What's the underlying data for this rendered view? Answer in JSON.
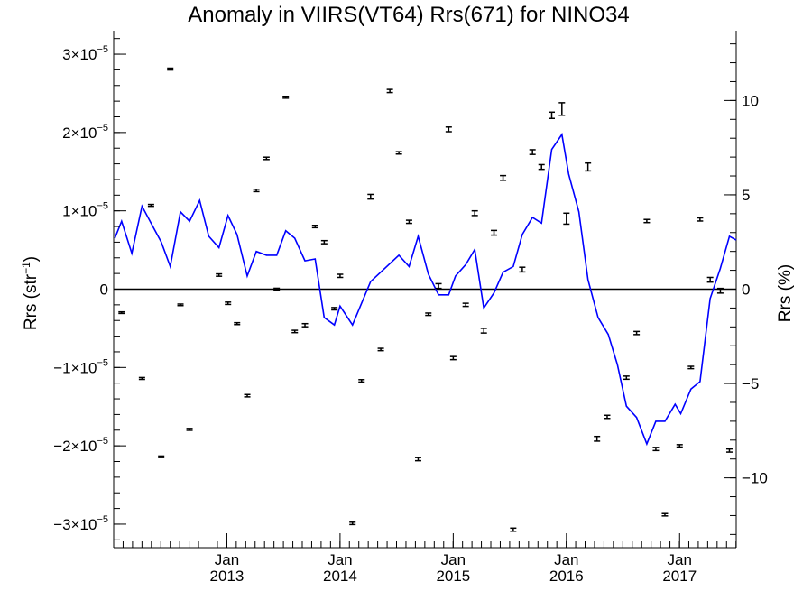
{
  "chart_data": {
    "type": "line",
    "title": "Anomaly in VIIRS(VT64) Rrs(671) for NINO34",
    "ylabel": "Rrs (str",
    "ylabel_sup": "−1",
    "ylabel_close": ")",
    "y2label": "Rrs (%)",
    "xlim": [
      2012.0,
      2017.5
    ],
    "ylim": [
      -3.3e-05,
      3.3e-05
    ],
    "y2lim": [
      -13.7,
      13.7
    ],
    "y_ticks": [
      {
        "value": 3e-05,
        "mant": "3",
        "exp": "−5"
      },
      {
        "value": 2e-05,
        "mant": "2",
        "exp": "−5"
      },
      {
        "value": 1e-05,
        "mant": "1",
        "exp": "−5"
      },
      {
        "value": 0,
        "mant": "0",
        "exp": ""
      },
      {
        "value": -1e-05,
        "mant": "−1",
        "exp": "−5"
      },
      {
        "value": -2e-05,
        "mant": "−2",
        "exp": "−5"
      },
      {
        "value": -3e-05,
        "mant": "−3",
        "exp": "−5"
      }
    ],
    "y2_ticks": [
      {
        "value": 10,
        "label": "10"
      },
      {
        "value": 5,
        "label": "5"
      },
      {
        "value": 0,
        "label": "0"
      },
      {
        "value": -5,
        "label": "−5"
      },
      {
        "value": -10,
        "label": "−10"
      }
    ],
    "x_ticks": [
      {
        "value": 2013,
        "month": "Jan",
        "year": "2013"
      },
      {
        "value": 2014,
        "month": "Jan",
        "year": "2014"
      },
      {
        "value": 2015,
        "month": "Jan",
        "year": "2015"
      },
      {
        "value": 2016,
        "month": "Jan",
        "year": "2016"
      },
      {
        "value": 2017,
        "month": "Jan",
        "year": "2017"
      }
    ],
    "x_minor_step": 0.0833,
    "grid": false,
    "series": [
      {
        "name": "",
        "color": "#0000ff",
        "axis": "y2",
        "points": [
          [
            2012.01,
            2.7
          ],
          [
            2012.07,
            3.6
          ],
          [
            2012.16,
            1.9
          ],
          [
            2012.25,
            4.4
          ],
          [
            2012.33,
            3.5
          ],
          [
            2012.42,
            2.5
          ],
          [
            2012.5,
            1.2
          ],
          [
            2012.59,
            4.1
          ],
          [
            2012.67,
            3.6
          ],
          [
            2012.76,
            4.7
          ],
          [
            2012.84,
            2.8
          ],
          [
            2012.93,
            2.2
          ],
          [
            2013.01,
            3.9
          ],
          [
            2013.09,
            2.9
          ],
          [
            2013.18,
            0.7
          ],
          [
            2013.26,
            2.0
          ],
          [
            2013.35,
            1.8
          ],
          [
            2013.44,
            1.8
          ],
          [
            2013.52,
            3.1
          ],
          [
            2013.6,
            2.7
          ],
          [
            2013.69,
            1.5
          ],
          [
            2013.78,
            1.6
          ],
          [
            2013.86,
            -1.5
          ],
          [
            2013.95,
            -1.9
          ],
          [
            2014.0,
            -0.9
          ],
          [
            2014.11,
            -1.9
          ],
          [
            2014.27,
            0.4
          ],
          [
            2014.52,
            1.8
          ],
          [
            2014.61,
            1.2
          ],
          [
            2014.69,
            2.8
          ],
          [
            2014.78,
            0.8
          ],
          [
            2014.87,
            -0.3
          ],
          [
            2014.96,
            -0.3
          ],
          [
            2015.02,
            0.7
          ],
          [
            2015.11,
            1.3
          ],
          [
            2015.19,
            2.1
          ],
          [
            2015.27,
            -1.0
          ],
          [
            2015.36,
            -0.2
          ],
          [
            2015.44,
            0.9
          ],
          [
            2015.53,
            1.2
          ],
          [
            2015.61,
            2.9
          ],
          [
            2015.7,
            3.8
          ],
          [
            2015.78,
            3.5
          ],
          [
            2015.87,
            7.4
          ],
          [
            2015.96,
            8.2
          ],
          [
            2016.02,
            6.1
          ],
          [
            2016.11,
            4.1
          ],
          [
            2016.19,
            0.5
          ],
          [
            2016.28,
            -1.5
          ],
          [
            2016.37,
            -2.4
          ],
          [
            2016.45,
            -4.0
          ],
          [
            2016.53,
            -6.2
          ],
          [
            2016.62,
            -6.8
          ],
          [
            2016.71,
            -8.2
          ],
          [
            2016.79,
            -7.0
          ],
          [
            2016.87,
            -7.0
          ],
          [
            2016.96,
            -6.1
          ],
          [
            2017.01,
            -6.6
          ],
          [
            2017.1,
            -5.3
          ],
          [
            2017.18,
            -4.9
          ],
          [
            2017.27,
            -0.5
          ],
          [
            2017.36,
            1.1
          ],
          [
            2017.44,
            2.8
          ],
          [
            2017.5,
            2.6
          ]
        ]
      }
    ],
    "points_errors": [
      [
        2012.07,
        -3e-06,
        1e-07
      ],
      [
        2012.25,
        -1.14e-05,
        1.2e-07
      ],
      [
        2012.33,
        1.07e-05,
        1.2e-07
      ],
      [
        2012.42,
        -2.14e-05,
        1e-07
      ],
      [
        2012.5,
        2.81e-05,
        1.2e-07
      ],
      [
        2012.59,
        -2e-06,
        1e-07
      ],
      [
        2012.67,
        -1.79e-05,
        1.2e-07
      ],
      [
        2012.93,
        1.8e-06,
        1.5e-07
      ],
      [
        2013.01,
        -1.8e-06,
        1.5e-07
      ],
      [
        2013.09,
        -4.4e-06,
        1.2e-07
      ],
      [
        2013.18,
        -1.36e-05,
        1.5e-07
      ],
      [
        2013.26,
        1.26e-05,
        1.5e-07
      ],
      [
        2013.35,
        1.67e-05,
        1.5e-07
      ],
      [
        2013.44,
        0.0,
        1.2e-07
      ],
      [
        2013.52,
        2.45e-05,
        1.2e-07
      ],
      [
        2013.6,
        -5.4e-06,
        1.5e-07
      ],
      [
        2013.69,
        -4.6e-06,
        2e-07
      ],
      [
        2013.78,
        8e-06,
        1.5e-07
      ],
      [
        2013.86,
        6e-06,
        2e-07
      ],
      [
        2013.95,
        -2.5e-06,
        1.5e-07
      ],
      [
        2014.0,
        1.7e-06,
        2e-07
      ],
      [
        2014.11,
        -2.99e-05,
        1.5e-07
      ],
      [
        2014.19,
        -1.17e-05,
        1.5e-07
      ],
      [
        2014.27,
        1.18e-05,
        3e-07
      ],
      [
        2014.36,
        -7.7e-06,
        1.5e-07
      ],
      [
        2014.44,
        2.53e-05,
        2e-07
      ],
      [
        2014.52,
        1.74e-05,
        1.5e-07
      ],
      [
        2014.61,
        8.6e-06,
        2e-07
      ],
      [
        2014.69,
        -2.17e-05,
        2e-07
      ],
      [
        2014.78,
        -3.2e-06,
        1.5e-07
      ],
      [
        2014.87,
        4e-07,
        3e-07
      ],
      [
        2014.96,
        2.04e-05,
        3e-07
      ],
      [
        2015.0,
        -8.8e-06,
        2e-07
      ],
      [
        2015.11,
        -2e-06,
        2e-07
      ],
      [
        2015.19,
        9.7e-06,
        3e-07
      ],
      [
        2015.27,
        -5.3e-06,
        3e-07
      ],
      [
        2015.36,
        7.2e-06,
        3e-07
      ],
      [
        2015.44,
        1.42e-05,
        3e-07
      ],
      [
        2015.53,
        -3.07e-05,
        2e-07
      ],
      [
        2015.61,
        2.5e-06,
        3e-07
      ],
      [
        2015.7,
        1.75e-05,
        3e-07
      ],
      [
        2015.78,
        1.56e-05,
        3e-07
      ],
      [
        2015.87,
        2.22e-05,
        4e-07
      ],
      [
        2015.96,
        2.3e-05,
        8e-07
      ],
      [
        2016.0,
        9e-06,
        7e-07
      ],
      [
        2016.19,
        1.56e-05,
        5e-07
      ],
      [
        2016.27,
        -1.91e-05,
        3e-07
      ],
      [
        2016.36,
        -1.63e-05,
        2e-07
      ],
      [
        2016.53,
        -1.13e-05,
        2e-07
      ],
      [
        2016.62,
        -5.6e-06,
        2e-07
      ],
      [
        2016.71,
        8.7e-06,
        2e-07
      ],
      [
        2016.79,
        -2.04e-05,
        2e-07
      ],
      [
        2016.87,
        -2.88e-05,
        1.5e-07
      ],
      [
        2017.0,
        -2e-05,
        1.5e-07
      ],
      [
        2017.1,
        -1e-05,
        1.5e-07
      ],
      [
        2017.18,
        8.9e-06,
        2e-07
      ],
      [
        2017.27,
        1.2e-06,
        3e-07
      ],
      [
        2017.36,
        -2e-07,
        3e-07
      ],
      [
        2017.44,
        -2.06e-05,
        2e-07
      ]
    ]
  }
}
